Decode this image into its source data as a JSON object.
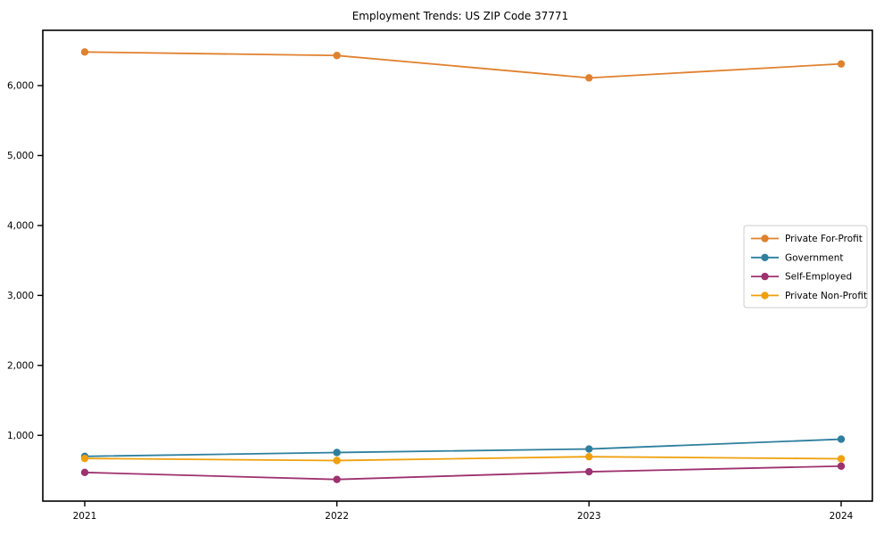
{
  "chart_data": {
    "type": "line",
    "title": "Employment Trends: US ZIP Code 37771",
    "categories": [
      "2021",
      "2022",
      "2023",
      "2024"
    ],
    "series": [
      {
        "name": "Private For-Profit",
        "color": "#e0812e",
        "values": [
          6480,
          6430,
          6110,
          6310
        ]
      },
      {
        "name": "Government",
        "color": "#2e7f9e",
        "values": [
          700,
          755,
          805,
          945
        ]
      },
      {
        "name": "Self-Employed",
        "color": "#9e3170",
        "values": [
          470,
          370,
          480,
          560
        ]
      },
      {
        "name": "Private Non-Profit",
        "color": "#efa00c",
        "values": [
          670,
          640,
          695,
          665
        ]
      }
    ],
    "xlabel": "",
    "ylabel": "",
    "ylim": [
      60,
      6790
    ],
    "yticks": [
      1000,
      2000,
      3000,
      4000,
      5000,
      6000
    ],
    "grid": false,
    "legend_position": "center right",
    "axis_color": "#000000",
    "legend_border_color": "#cccccc"
  }
}
